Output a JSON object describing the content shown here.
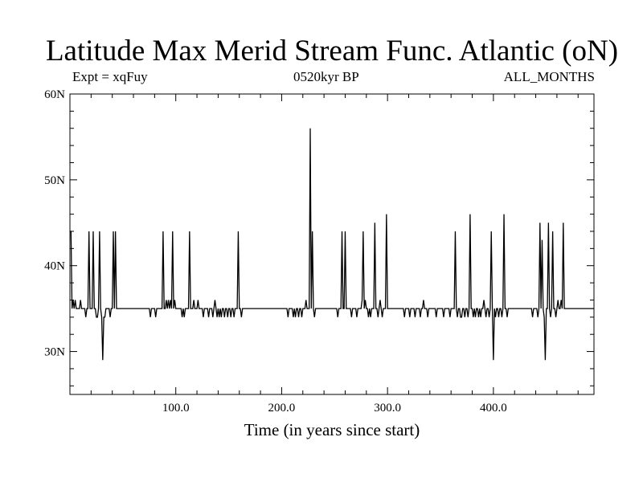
{
  "title": "Latitude Max Merid Stream Func. Atlantic (oN)",
  "subtitle_left": "Expt = xqFuy",
  "subtitle_center": "0520kyr BP",
  "subtitle_right": "ALL_MONTHS",
  "chart_data": {
    "type": "line",
    "title": "Latitude Max Merid Stream Func. Atlantic (oN)",
    "xlabel": "Time (in years since start)",
    "ylabel": "",
    "xlim": [
      0,
      495
    ],
    "ylim": [
      25,
      60
    ],
    "xticks": [
      {
        "value": 100,
        "label": "100.0"
      },
      {
        "value": 200,
        "label": "200.0"
      },
      {
        "value": 300,
        "label": "300.0"
      },
      {
        "value": 400,
        "label": "400.0"
      }
    ],
    "yticks": [
      {
        "value": 30,
        "label": "30N"
      },
      {
        "value": 40,
        "label": "40N"
      },
      {
        "value": 50,
        "label": "50N"
      },
      {
        "value": 60,
        "label": "60N"
      }
    ],
    "grid": false,
    "baseline": 35,
    "series": [
      {
        "color": "#000000",
        "points": [
          [
            0,
            44
          ],
          [
            1,
            44
          ],
          [
            2,
            35
          ],
          [
            3,
            36
          ],
          [
            4,
            35
          ],
          [
            5,
            36
          ],
          [
            6,
            35
          ],
          [
            7,
            35
          ],
          [
            9,
            35
          ],
          [
            10,
            36
          ],
          [
            11,
            35
          ],
          [
            12,
            35
          ],
          [
            14,
            35
          ],
          [
            15,
            34
          ],
          [
            16,
            35
          ],
          [
            17,
            35
          ],
          [
            18,
            44
          ],
          [
            19,
            35
          ],
          [
            20,
            35
          ],
          [
            21,
            35
          ],
          [
            22,
            44
          ],
          [
            23,
            35
          ],
          [
            24,
            35
          ],
          [
            25,
            34
          ],
          [
            26,
            34
          ],
          [
            27,
            35
          ],
          [
            28,
            44
          ],
          [
            29,
            35
          ],
          [
            30,
            34
          ],
          [
            31,
            29
          ],
          [
            32,
            34
          ],
          [
            33,
            34
          ],
          [
            34,
            35
          ],
          [
            35,
            35
          ],
          [
            36,
            35
          ],
          [
            37,
            35
          ],
          [
            38,
            34
          ],
          [
            39,
            35
          ],
          [
            40,
            35
          ],
          [
            41,
            44
          ],
          [
            42,
            35
          ],
          [
            43,
            44
          ],
          [
            44,
            35
          ],
          [
            45,
            35
          ],
          [
            75,
            35
          ],
          [
            76,
            34
          ],
          [
            77,
            35
          ],
          [
            80,
            35
          ],
          [
            81,
            34
          ],
          [
            82,
            35
          ],
          [
            87,
            35
          ],
          [
            88,
            44
          ],
          [
            89,
            35
          ],
          [
            90,
            35
          ],
          [
            91,
            36
          ],
          [
            92,
            35
          ],
          [
            93,
            36
          ],
          [
            94,
            35
          ],
          [
            95,
            36
          ],
          [
            96,
            35
          ],
          [
            97,
            44
          ],
          [
            98,
            35
          ],
          [
            99,
            36
          ],
          [
            100,
            35
          ],
          [
            105,
            35
          ],
          [
            106,
            34
          ],
          [
            107,
            35
          ],
          [
            108,
            34
          ],
          [
            109,
            35
          ],
          [
            112,
            35
          ],
          [
            113,
            44
          ],
          [
            114,
            35
          ],
          [
            116,
            35
          ],
          [
            117,
            36
          ],
          [
            118,
            35
          ],
          [
            120,
            35
          ],
          [
            121,
            36
          ],
          [
            122,
            35
          ],
          [
            125,
            35
          ],
          [
            126,
            34
          ],
          [
            127,
            35
          ],
          [
            130,
            35
          ],
          [
            131,
            34
          ],
          [
            132,
            35
          ],
          [
            134,
            35
          ],
          [
            135,
            34
          ],
          [
            136,
            35
          ],
          [
            137,
            36
          ],
          [
            138,
            35
          ],
          [
            139,
            34
          ],
          [
            140,
            35
          ],
          [
            141,
            34
          ],
          [
            142,
            35
          ],
          [
            143,
            34
          ],
          [
            144,
            35
          ],
          [
            145,
            35
          ],
          [
            146,
            34
          ],
          [
            147,
            35
          ],
          [
            148,
            35
          ],
          [
            149,
            34
          ],
          [
            150,
            35
          ],
          [
            151,
            35
          ],
          [
            152,
            34
          ],
          [
            153,
            35
          ],
          [
            154,
            35
          ],
          [
            155,
            34
          ],
          [
            156,
            35
          ],
          [
            157,
            35
          ],
          [
            158,
            35
          ],
          [
            159,
            44
          ],
          [
            160,
            35
          ],
          [
            161,
            35
          ],
          [
            162,
            34
          ],
          [
            163,
            35
          ],
          [
            164,
            35
          ],
          [
            205,
            35
          ],
          [
            206,
            34
          ],
          [
            207,
            35
          ],
          [
            210,
            35
          ],
          [
            211,
            34
          ],
          [
            212,
            35
          ],
          [
            213,
            34
          ],
          [
            214,
            35
          ],
          [
            215,
            35
          ],
          [
            216,
            34
          ],
          [
            217,
            35
          ],
          [
            218,
            35
          ],
          [
            219,
            34
          ],
          [
            220,
            35
          ],
          [
            222,
            35
          ],
          [
            223,
            36
          ],
          [
            224,
            35
          ],
          [
            226,
            35
          ],
          [
            227,
            56
          ],
          [
            228,
            35
          ],
          [
            229,
            44
          ],
          [
            230,
            35
          ],
          [
            231,
            34
          ],
          [
            232,
            35
          ],
          [
            252,
            35
          ],
          [
            253,
            34
          ],
          [
            254,
            35
          ],
          [
            256,
            35
          ],
          [
            257,
            44
          ],
          [
            258,
            35
          ],
          [
            259,
            35
          ],
          [
            260,
            44
          ],
          [
            261,
            35
          ],
          [
            265,
            35
          ],
          [
            266,
            34
          ],
          [
            267,
            35
          ],
          [
            270,
            35
          ],
          [
            271,
            34
          ],
          [
            272,
            35
          ],
          [
            275,
            35
          ],
          [
            276,
            36
          ],
          [
            277,
            44
          ],
          [
            278,
            35
          ],
          [
            279,
            36
          ],
          [
            280,
            35
          ],
          [
            281,
            35
          ],
          [
            282,
            34
          ],
          [
            283,
            35
          ],
          [
            284,
            34
          ],
          [
            285,
            35
          ],
          [
            287,
            35
          ],
          [
            288,
            45
          ],
          [
            289,
            35
          ],
          [
            290,
            35
          ],
          [
            291,
            34
          ],
          [
            292,
            35
          ],
          [
            293,
            36
          ],
          [
            294,
            35
          ],
          [
            295,
            34
          ],
          [
            296,
            35
          ],
          [
            298,
            35
          ],
          [
            299,
            46
          ],
          [
            300,
            35
          ],
          [
            315,
            35
          ],
          [
            316,
            34
          ],
          [
            317,
            35
          ],
          [
            320,
            35
          ],
          [
            321,
            34
          ],
          [
            322,
            35
          ],
          [
            325,
            35
          ],
          [
            326,
            34
          ],
          [
            327,
            35
          ],
          [
            330,
            35
          ],
          [
            331,
            34
          ],
          [
            332,
            35
          ],
          [
            333,
            35
          ],
          [
            334,
            36
          ],
          [
            335,
            35
          ],
          [
            337,
            35
          ],
          [
            338,
            34
          ],
          [
            339,
            35
          ],
          [
            345,
            35
          ],
          [
            346,
            34
          ],
          [
            347,
            35
          ],
          [
            352,
            35
          ],
          [
            353,
            34
          ],
          [
            354,
            35
          ],
          [
            358,
            35
          ],
          [
            359,
            34
          ],
          [
            360,
            35
          ],
          [
            363,
            35
          ],
          [
            364,
            44
          ],
          [
            365,
            35
          ],
          [
            366,
            34
          ],
          [
            367,
            35
          ],
          [
            368,
            35
          ],
          [
            369,
            34
          ],
          [
            370,
            34
          ],
          [
            371,
            35
          ],
          [
            372,
            35
          ],
          [
            373,
            34
          ],
          [
            374,
            35
          ],
          [
            375,
            35
          ],
          [
            376,
            34
          ],
          [
            377,
            35
          ],
          [
            378,
            46
          ],
          [
            379,
            35
          ],
          [
            380,
            35
          ],
          [
            381,
            34
          ],
          [
            382,
            35
          ],
          [
            383,
            34
          ],
          [
            384,
            35
          ],
          [
            385,
            35
          ],
          [
            386,
            34
          ],
          [
            387,
            35
          ],
          [
            388,
            34
          ],
          [
            389,
            35
          ],
          [
            390,
            35
          ],
          [
            391,
            36
          ],
          [
            392,
            35
          ],
          [
            393,
            34
          ],
          [
            394,
            35
          ],
          [
            395,
            35
          ],
          [
            396,
            34
          ],
          [
            397,
            35
          ],
          [
            398,
            44
          ],
          [
            399,
            35
          ],
          [
            400,
            29
          ],
          [
            401,
            35
          ],
          [
            402,
            34
          ],
          [
            403,
            35
          ],
          [
            404,
            35
          ],
          [
            405,
            34
          ],
          [
            406,
            35
          ],
          [
            407,
            35
          ],
          [
            408,
            34
          ],
          [
            409,
            35
          ],
          [
            410,
            46
          ],
          [
            411,
            35
          ],
          [
            412,
            35
          ],
          [
            413,
            34
          ],
          [
            414,
            35
          ],
          [
            436,
            35
          ],
          [
            437,
            34
          ],
          [
            438,
            35
          ],
          [
            441,
            35
          ],
          [
            442,
            34
          ],
          [
            443,
            35
          ],
          [
            444,
            45
          ],
          [
            445,
            35
          ],
          [
            446,
            43
          ],
          [
            447,
            35
          ],
          [
            448,
            34
          ],
          [
            449,
            29
          ],
          [
            450,
            35
          ],
          [
            451,
            35
          ],
          [
            452,
            45
          ],
          [
            453,
            35
          ],
          [
            454,
            34
          ],
          [
            455,
            35
          ],
          [
            456,
            44
          ],
          [
            457,
            35
          ],
          [
            458,
            35
          ],
          [
            459,
            34
          ],
          [
            460,
            35
          ],
          [
            461,
            36
          ],
          [
            462,
            35
          ],
          [
            463,
            35
          ],
          [
            464,
            36
          ],
          [
            465,
            35
          ],
          [
            466,
            45
          ],
          [
            467,
            35
          ],
          [
            468,
            35
          ],
          [
            495,
            35
          ]
        ]
      }
    ]
  }
}
